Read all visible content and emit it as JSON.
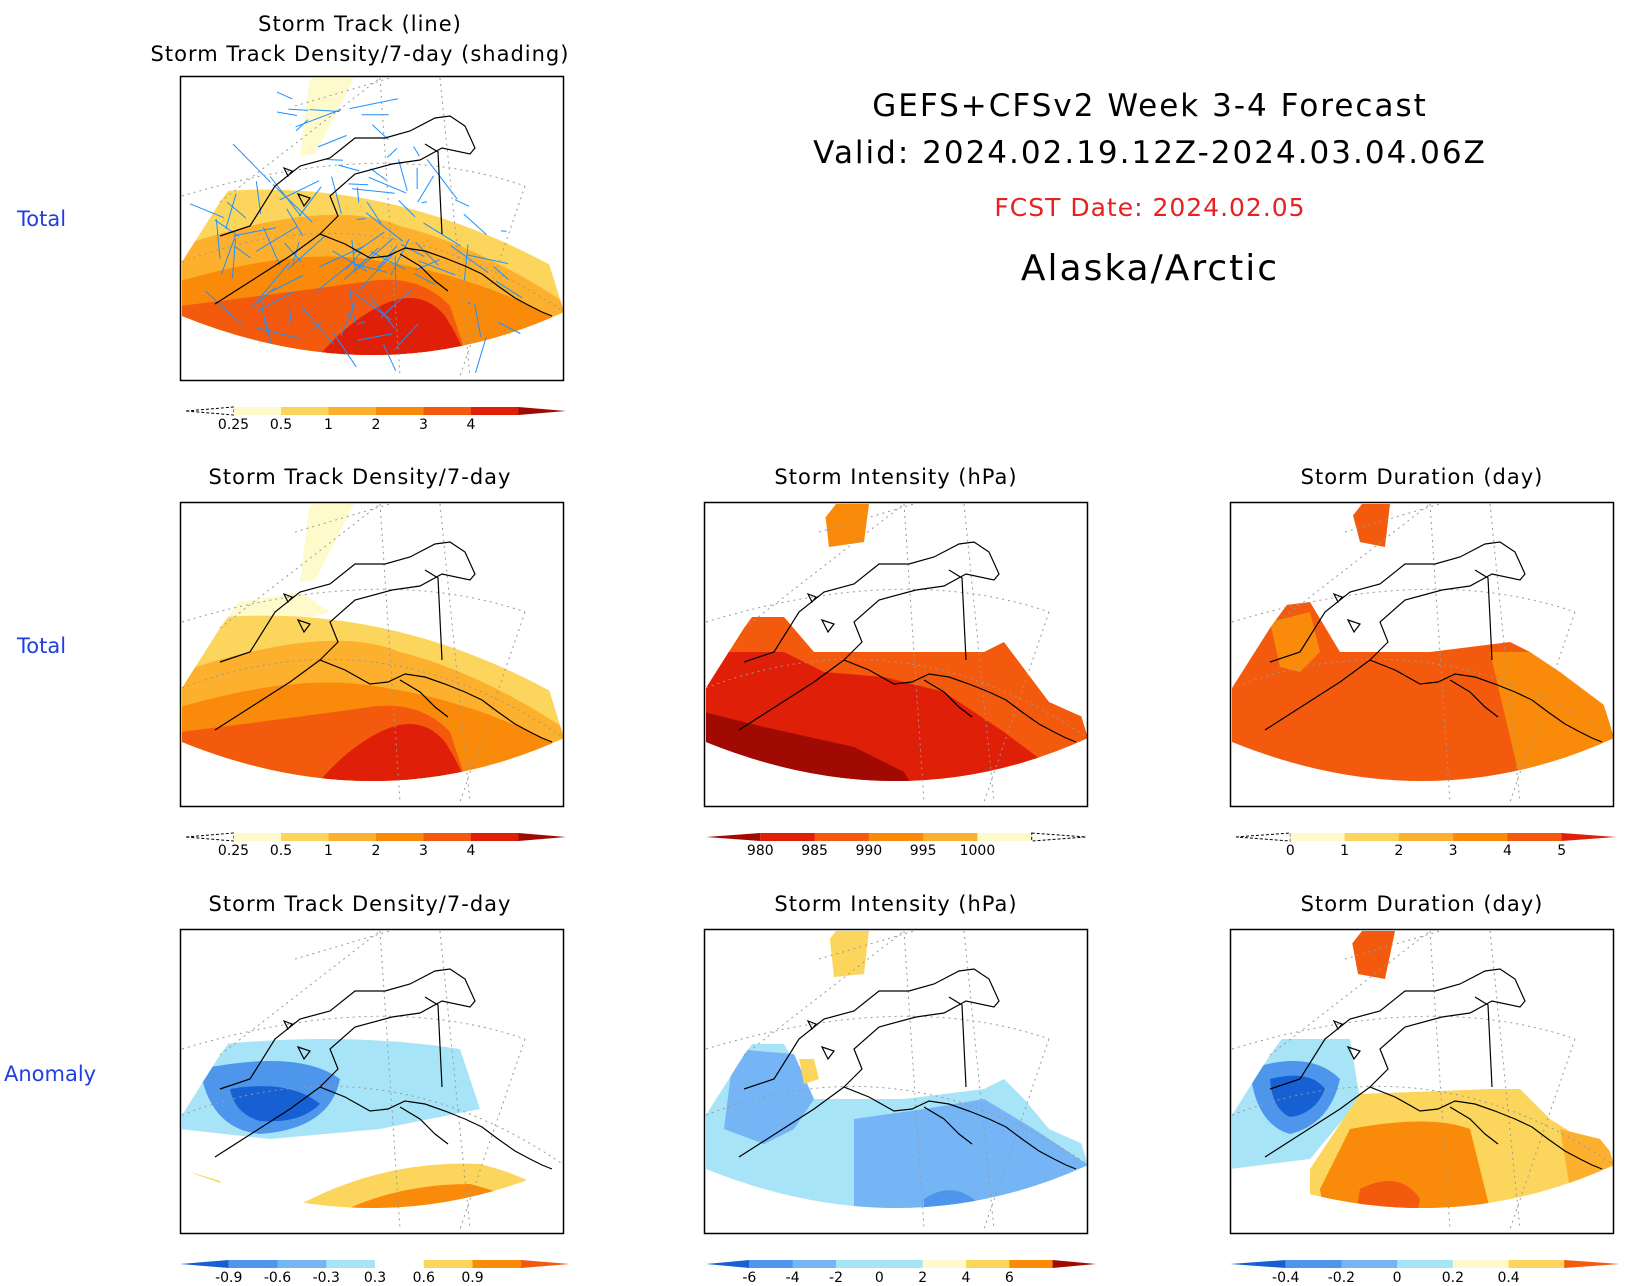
{
  "header": {
    "line1": "GEFS+CFSv2 Week 3-4 Forecast",
    "line2": "Valid: 2024.02.19.12Z-2024.03.04.06Z",
    "fcst_date": "FCST Date: 2024.02.05",
    "region": "Alaska/Arctic"
  },
  "row_labels": {
    "row1": "Total",
    "row2": "Total",
    "row3": "Anomaly"
  },
  "titles": {
    "p1_line1": "Storm Track (line)",
    "p1_line2": "Storm Track Density/7-day (shading)",
    "p2": "Storm Track Density/7-day",
    "p3": "Storm Intensity (hPa)",
    "p4": "Storm Duration (day)",
    "p5": "Storm Track Density/7-day",
    "p6": "Storm Intensity (hPa)",
    "p7": "Storm Duration (day)"
  },
  "colors": {
    "warm": [
      "#fffacc",
      "#fcd65c",
      "#fdb02e",
      "#f98a0a",
      "#f35a0e",
      "#df1f07",
      "#a00a02"
    ],
    "cool": [
      "#1660d4",
      "#4d96ec",
      "#76b5f5",
      "#a8e4f7"
    ],
    "track_line": "#1e90ff",
    "row_label": "#1f3fe0",
    "fcst_date": "#e82020"
  },
  "chart_data": [
    {
      "id": "p1",
      "type": "heatmap",
      "title": "Storm Track (line) / Storm Track Density/7-day (shading)",
      "overlay": "storm track lines",
      "colorbar_ticks": [
        "0.25",
        "0.5",
        "1",
        "2",
        "3",
        "4"
      ]
    },
    {
      "id": "p2",
      "type": "heatmap",
      "title": "Storm Track Density/7-day",
      "colorbar_ticks": [
        "0.25",
        "0.5",
        "1",
        "2",
        "3",
        "4"
      ]
    },
    {
      "id": "p3",
      "type": "heatmap",
      "title": "Storm Intensity (hPa)",
      "colorbar_ticks": [
        "980",
        "985",
        "990",
        "995",
        "1000"
      ]
    },
    {
      "id": "p4",
      "type": "heatmap",
      "title": "Storm Duration (day)",
      "colorbar_ticks": [
        "0",
        "1",
        "2",
        "3",
        "4",
        "5"
      ]
    },
    {
      "id": "p5",
      "type": "heatmap",
      "title": "Storm Track Density/7-day",
      "colorbar_ticks": [
        "-0.9",
        "-0.6",
        "-0.3",
        "0.3",
        "0.6",
        "0.9"
      ]
    },
    {
      "id": "p6",
      "type": "heatmap",
      "title": "Storm Intensity (hPa)",
      "colorbar_ticks": [
        "-6",
        "-4",
        "-2",
        "0",
        "2",
        "4",
        "6"
      ]
    },
    {
      "id": "p7",
      "type": "heatmap",
      "title": "Storm Duration (day)",
      "colorbar_ticks": [
        "-0.4",
        "-0.2",
        "0",
        "0.2",
        "0.4"
      ]
    }
  ]
}
